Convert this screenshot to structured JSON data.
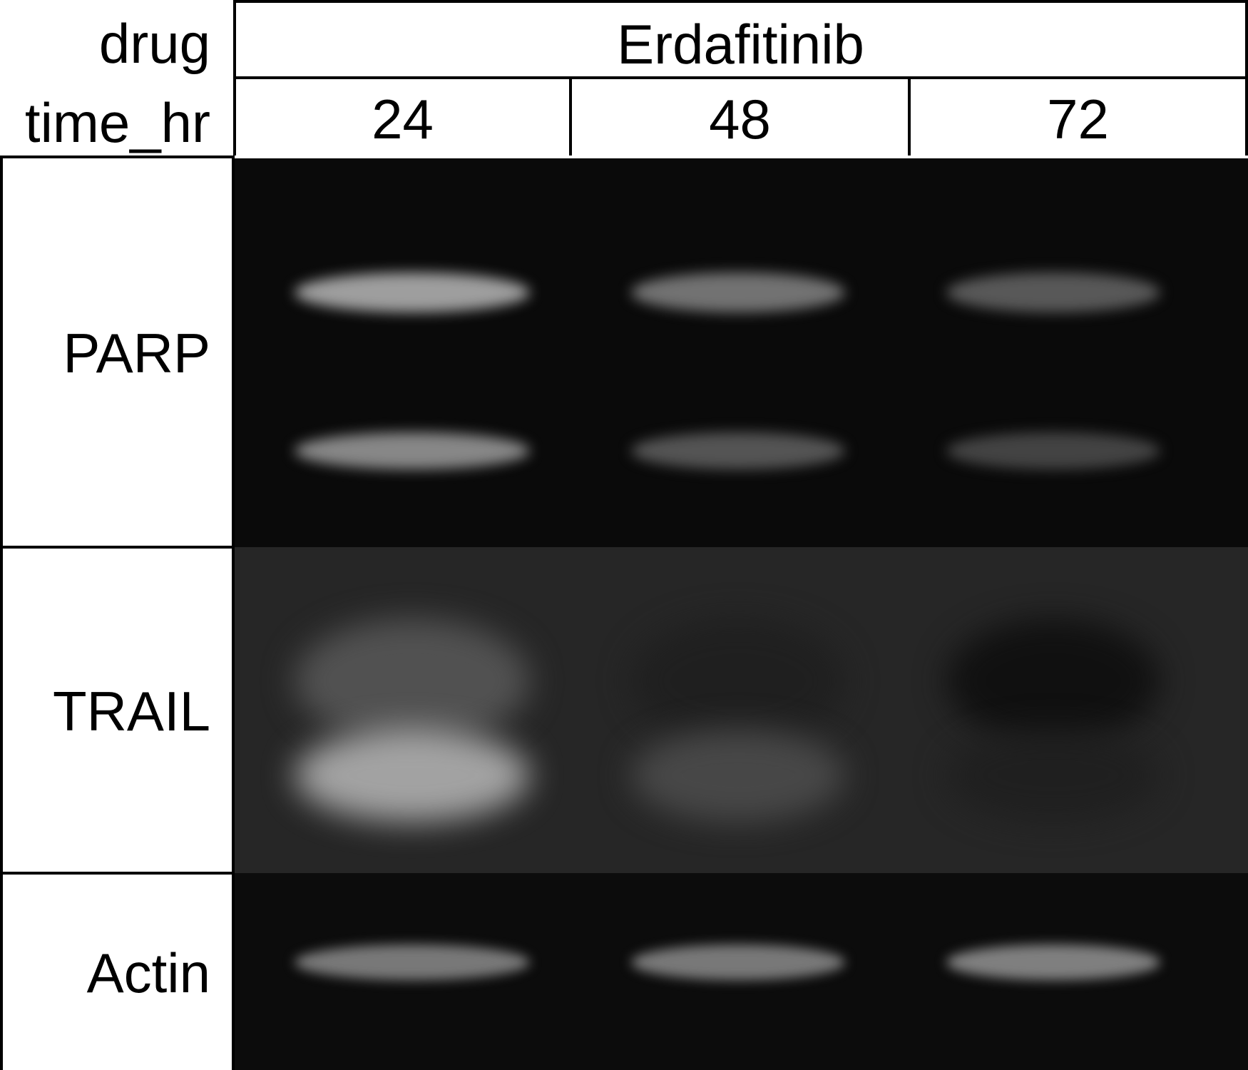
{
  "header": {
    "drug_label": "drug",
    "time_label": "time_hr",
    "drug": "Erdafitinib",
    "times": [
      "24",
      "48",
      "72"
    ]
  },
  "blots": [
    {
      "label": "PARP",
      "background": "#0a0a0a",
      "bands": [
        {
          "lane": 0,
          "level": "upper",
          "intensity": 0.72
        },
        {
          "lane": 0,
          "level": "lower",
          "intensity": 0.62
        },
        {
          "lane": 1,
          "level": "upper",
          "intensity": 0.52
        },
        {
          "lane": 1,
          "level": "lower",
          "intensity": 0.38
        },
        {
          "lane": 2,
          "level": "upper",
          "intensity": 0.4
        },
        {
          "lane": 2,
          "level": "lower",
          "intensity": 0.3
        }
      ]
    },
    {
      "label": "TRAIL",
      "background": "#262626",
      "bands": [
        {
          "lane": 0,
          "level": "upper",
          "intensity": 0.35
        },
        {
          "lane": 0,
          "level": "lower",
          "intensity": 0.72
        },
        {
          "lane": 1,
          "level": "upper",
          "intensity": 0.12
        },
        {
          "lane": 1,
          "level": "lower",
          "intensity": 0.3
        },
        {
          "lane": 2,
          "level": "upper",
          "intensity": 0.05
        },
        {
          "lane": 2,
          "level": "lower",
          "intensity": 0.12
        }
      ]
    },
    {
      "label": "Actin",
      "background": "#0c0c0c",
      "bands": [
        {
          "lane": 0,
          "level": "single",
          "intensity": 0.55
        },
        {
          "lane": 1,
          "level": "single",
          "intensity": 0.55
        },
        {
          "lane": 2,
          "level": "single",
          "intensity": 0.58
        }
      ]
    }
  ]
}
